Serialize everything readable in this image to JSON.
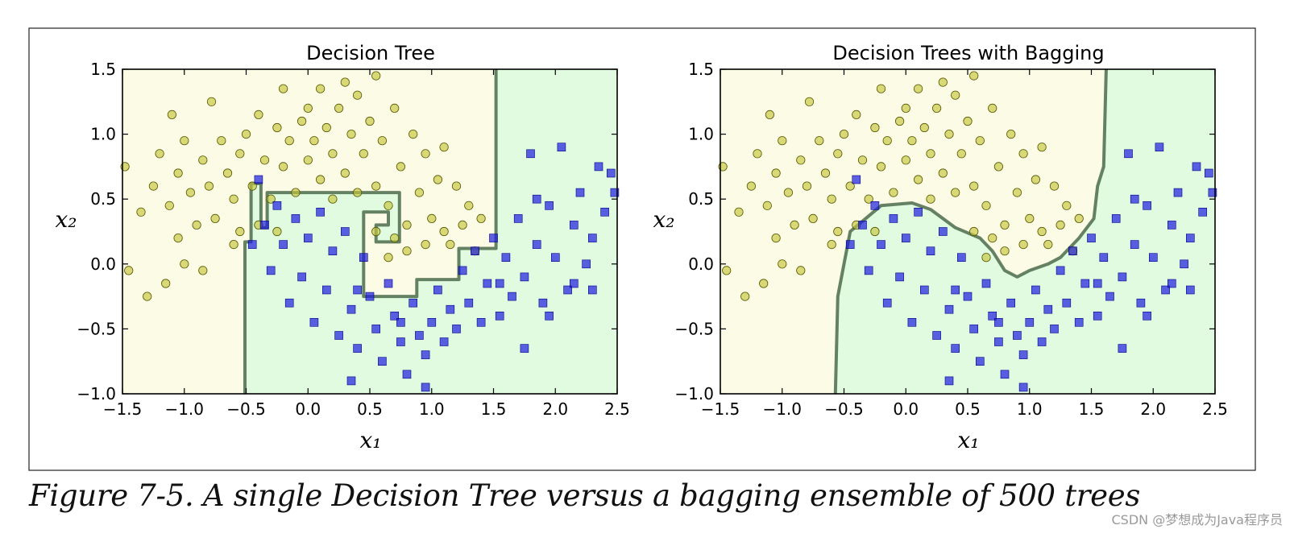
{
  "figure": {
    "caption": "Figure 7-5. A single Decision Tree versus a bagging ensemble of 500 trees",
    "watermark": "CSDN @梦想成为Java程序员"
  },
  "colors": {
    "class0_region": "#fcfbe6",
    "class1_region": "#e0fbe0",
    "class0_marker": "#c4c43a",
    "class1_marker": "#1c1ce0",
    "boundary": "#4b6b4b"
  },
  "chart_data": [
    {
      "type": "scatter",
      "title": "Decision Tree",
      "xlabel": "x₁",
      "ylabel": "x₂",
      "xlim": [
        -1.5,
        2.5
      ],
      "ylim": [
        -1.0,
        1.5
      ],
      "xticks": [
        -1.5,
        -1.0,
        -0.5,
        0.0,
        0.5,
        1.0,
        1.5,
        2.0,
        2.5
      ],
      "yticks": [
        -1.0,
        -0.5,
        0.0,
        0.5,
        1.0,
        1.5
      ],
      "xtick_labels": [
        "−1.5",
        "−1.0",
        "−0.5",
        "0.0",
        "0.5",
        "1.0",
        "1.5",
        "2.0",
        "2.5"
      ],
      "ytick_labels": [
        "−1.0",
        "−0.5",
        "0.0",
        "0.5",
        "1.0",
        "1.5"
      ],
      "grid": false,
      "series": [
        {
          "marker": "circle",
          "class": 0,
          "points": [
            [
              -1.45,
              -0.05
            ],
            [
              -1.35,
              0.4
            ],
            [
              -1.3,
              -0.25
            ],
            [
              -1.25,
              0.6
            ],
            [
              -1.2,
              0.85
            ],
            [
              -1.15,
              -0.15
            ],
            [
              -1.12,
              0.45
            ],
            [
              -1.1,
              1.15
            ],
            [
              -1.05,
              0.7
            ],
            [
              -1.05,
              0.2
            ],
            [
              -1.0,
              0.0
            ],
            [
              -1.0,
              0.95
            ],
            [
              -0.95,
              0.55
            ],
            [
              -0.9,
              0.3
            ],
            [
              -0.85,
              0.8
            ],
            [
              -0.85,
              -0.05
            ],
            [
              -0.8,
              0.6
            ],
            [
              -0.78,
              1.25
            ],
            [
              -0.75,
              0.35
            ],
            [
              -0.7,
              0.95
            ],
            [
              -0.65,
              0.7
            ],
            [
              -0.6,
              0.5
            ],
            [
              -0.6,
              0.15
            ],
            [
              -0.55,
              0.85
            ],
            [
              -0.5,
              1.0
            ],
            [
              -0.45,
              0.6
            ],
            [
              -0.4,
              0.3
            ],
            [
              -0.4,
              1.15
            ],
            [
              -0.35,
              0.8
            ],
            [
              -0.3,
              0.5
            ],
            [
              -0.25,
              1.05
            ],
            [
              -0.2,
              1.35
            ],
            [
              -0.2,
              0.75
            ],
            [
              -0.15,
              0.95
            ],
            [
              -0.1,
              0.55
            ],
            [
              -0.05,
              1.1
            ],
            [
              0.0,
              0.8
            ],
            [
              0.0,
              1.2
            ],
            [
              0.05,
              0.95
            ],
            [
              0.1,
              0.65
            ],
            [
              0.1,
              1.35
            ],
            [
              0.15,
              1.05
            ],
            [
              0.2,
              0.85
            ],
            [
              0.25,
              1.2
            ],
            [
              0.3,
              0.7
            ],
            [
              0.3,
              1.4
            ],
            [
              0.35,
              1.0
            ],
            [
              0.4,
              0.55
            ],
            [
              0.4,
              1.3
            ],
            [
              0.45,
              0.85
            ],
            [
              0.5,
              1.1
            ],
            [
              0.55,
              0.6
            ],
            [
              0.55,
              1.45
            ],
            [
              0.6,
              0.95
            ],
            [
              0.65,
              0.45
            ],
            [
              0.7,
              1.2
            ],
            [
              0.75,
              0.75
            ],
            [
              0.8,
              0.3
            ],
            [
              0.85,
              1.0
            ],
            [
              0.9,
              0.55
            ],
            [
              0.95,
              0.85
            ],
            [
              1.0,
              0.35
            ],
            [
              1.05,
              0.65
            ],
            [
              1.1,
              0.9
            ],
            [
              1.15,
              0.15
            ],
            [
              1.2,
              0.6
            ],
            [
              1.25,
              0.3
            ],
            [
              1.3,
              0.45
            ],
            [
              1.35,
              0.1
            ],
            [
              1.4,
              0.35
            ],
            [
              -1.48,
              0.75
            ],
            [
              0.7,
              0.2
            ],
            [
              0.8,
              0.1
            ],
            [
              0.95,
              0.15
            ],
            [
              0.65,
              0.05
            ],
            [
              1.1,
              0.25
            ],
            [
              0.55,
              0.25
            ],
            [
              -0.25,
              0.25
            ],
            [
              -0.55,
              0.25
            ],
            [
              0.2,
              0.5
            ]
          ]
        },
        {
          "marker": "square",
          "class": 1,
          "points": [
            [
              -0.45,
              0.15
            ],
            [
              -0.4,
              0.65
            ],
            [
              -0.35,
              0.3
            ],
            [
              -0.3,
              -0.05
            ],
            [
              -0.25,
              0.45
            ],
            [
              -0.2,
              0.15
            ],
            [
              -0.15,
              -0.3
            ],
            [
              -0.1,
              0.35
            ],
            [
              -0.05,
              -0.1
            ],
            [
              0.0,
              0.2
            ],
            [
              0.05,
              -0.45
            ],
            [
              0.1,
              0.4
            ],
            [
              0.15,
              -0.2
            ],
            [
              0.2,
              0.1
            ],
            [
              0.25,
              -0.55
            ],
            [
              0.3,
              0.25
            ],
            [
              0.35,
              -0.35
            ],
            [
              0.4,
              -0.65
            ],
            [
              0.45,
              0.05
            ],
            [
              0.5,
              -0.25
            ],
            [
              0.55,
              -0.5
            ],
            [
              0.6,
              -0.75
            ],
            [
              0.65,
              -0.15
            ],
            [
              0.7,
              -0.4
            ],
            [
              0.75,
              -0.6
            ],
            [
              0.8,
              -0.85
            ],
            [
              0.85,
              -0.3
            ],
            [
              0.9,
              -0.55
            ],
            [
              0.95,
              -0.7
            ],
            [
              1.0,
              -0.45
            ],
            [
              1.05,
              -0.2
            ],
            [
              1.1,
              -0.6
            ],
            [
              1.15,
              -0.35
            ],
            [
              1.2,
              -0.5
            ],
            [
              1.25,
              -0.05
            ],
            [
              1.3,
              -0.3
            ],
            [
              1.35,
              0.1
            ],
            [
              1.4,
              -0.45
            ],
            [
              1.45,
              -0.15
            ],
            [
              1.5,
              0.2
            ],
            [
              1.55,
              -0.4
            ],
            [
              1.6,
              0.05
            ],
            [
              1.65,
              -0.25
            ],
            [
              1.7,
              0.35
            ],
            [
              1.75,
              -0.1
            ],
            [
              1.8,
              0.85
            ],
            [
              1.85,
              0.15
            ],
            [
              1.9,
              -0.3
            ],
            [
              1.95,
              0.45
            ],
            [
              2.0,
              0.05
            ],
            [
              2.05,
              0.9
            ],
            [
              2.1,
              -0.2
            ],
            [
              2.15,
              0.3
            ],
            [
              2.2,
              0.55
            ],
            [
              2.25,
              0.0
            ],
            [
              2.3,
              0.2
            ],
            [
              2.35,
              0.75
            ],
            [
              2.4,
              0.4
            ],
            [
              2.45,
              0.7
            ],
            [
              2.48,
              0.55
            ],
            [
              0.35,
              -0.9
            ],
            [
              0.95,
              -0.95
            ],
            [
              1.75,
              -0.65
            ],
            [
              1.55,
              -0.15
            ],
            [
              1.95,
              -0.4
            ],
            [
              2.3,
              -0.2
            ],
            [
              0.75,
              -0.45
            ],
            [
              0.4,
              -0.2
            ],
            [
              1.85,
              0.5
            ],
            [
              2.15,
              -0.15
            ]
          ]
        }
      ],
      "boundary_path": [
        [
          -0.51,
          -1.0
        ],
        [
          -0.51,
          0.17
        ],
        [
          -0.46,
          0.17
        ],
        [
          -0.46,
          0.62
        ],
        [
          -0.38,
          0.62
        ],
        [
          -0.38,
          0.28
        ],
        [
          -0.33,
          0.28
        ],
        [
          -0.33,
          0.28
        ],
        [
          -0.33,
          0.55
        ],
        [
          0.74,
          0.55
        ],
        [
          0.74,
          0.17
        ],
        [
          0.55,
          0.17
        ],
        [
          0.55,
          0.3
        ],
        [
          0.65,
          0.3
        ],
        [
          0.65,
          0.4
        ],
        [
          0.45,
          0.4
        ],
        [
          0.45,
          -0.25
        ],
        [
          0.88,
          -0.25
        ],
        [
          0.88,
          -0.12
        ],
        [
          1.22,
          -0.12
        ],
        [
          1.22,
          0.12
        ],
        [
          1.52,
          0.12
        ],
        [
          1.52,
          1.5
        ]
      ]
    },
    {
      "type": "scatter",
      "title": "Decision Trees with Bagging",
      "xlabel": "x₁",
      "ylabel": "x₂",
      "xlim": [
        -1.5,
        2.5
      ],
      "ylim": [
        -1.0,
        1.5
      ],
      "xticks": [
        -1.5,
        -1.0,
        -0.5,
        0.0,
        0.5,
        1.0,
        1.5,
        2.0,
        2.5
      ],
      "yticks": [
        -1.0,
        -0.5,
        0.0,
        0.5,
        1.0,
        1.5
      ],
      "xtick_labels": [
        "−1.5",
        "−1.0",
        "−0.5",
        "0.0",
        "0.5",
        "1.0",
        "1.5",
        "2.0",
        "2.5"
      ],
      "ytick_labels": [
        "−1.0",
        "−0.5",
        "0.0",
        "0.5",
        "1.0",
        "1.5"
      ],
      "grid": false,
      "series": [
        {
          "marker": "circle",
          "class": 0,
          "points": "same-as-first"
        },
        {
          "marker": "square",
          "class": 1,
          "points": "same-as-first"
        }
      ],
      "boundary_path": [
        [
          -0.57,
          -1.0
        ],
        [
          -0.55,
          -0.25
        ],
        [
          -0.5,
          0.0
        ],
        [
          -0.45,
          0.25
        ],
        [
          -0.3,
          0.37
        ],
        [
          -0.2,
          0.45
        ],
        [
          0.05,
          0.47
        ],
        [
          0.2,
          0.42
        ],
        [
          0.3,
          0.35
        ],
        [
          0.4,
          0.28
        ],
        [
          0.6,
          0.2
        ],
        [
          0.7,
          0.1
        ],
        [
          0.8,
          -0.05
        ],
        [
          0.9,
          -0.1
        ],
        [
          1.0,
          -0.05
        ],
        [
          1.15,
          0.0
        ],
        [
          1.25,
          0.05
        ],
        [
          1.4,
          0.2
        ],
        [
          1.52,
          0.35
        ],
        [
          1.55,
          0.6
        ],
        [
          1.6,
          0.75
        ],
        [
          1.62,
          1.5
        ]
      ]
    }
  ]
}
